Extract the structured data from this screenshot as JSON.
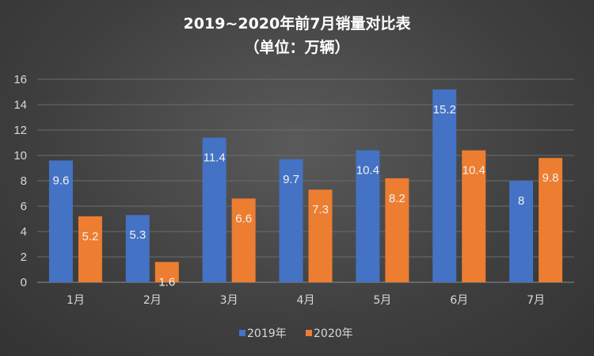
{
  "chart_data": {
    "type": "bar",
    "title": "2019~2020年前7月销量对比表",
    "subtitle": "（单位：万辆）",
    "categories": [
      "1月",
      "2月",
      "3月",
      "4月",
      "5月",
      "6月",
      "7月"
    ],
    "series": [
      {
        "name": "2019年",
        "color": "#4472C4",
        "values": [
          9.6,
          5.3,
          11.4,
          9.7,
          10.4,
          15.2,
          8
        ]
      },
      {
        "name": "2020年",
        "color": "#ED7D31",
        "values": [
          5.2,
          1.6,
          6.6,
          7.3,
          8.2,
          10.4,
          9.8
        ]
      }
    ],
    "ylim": [
      0,
      16
    ],
    "yticks": [
      0,
      2,
      4,
      6,
      8,
      10,
      12,
      14,
      16
    ],
    "grid": true,
    "legend_position": "bottom",
    "data_labels": true
  }
}
